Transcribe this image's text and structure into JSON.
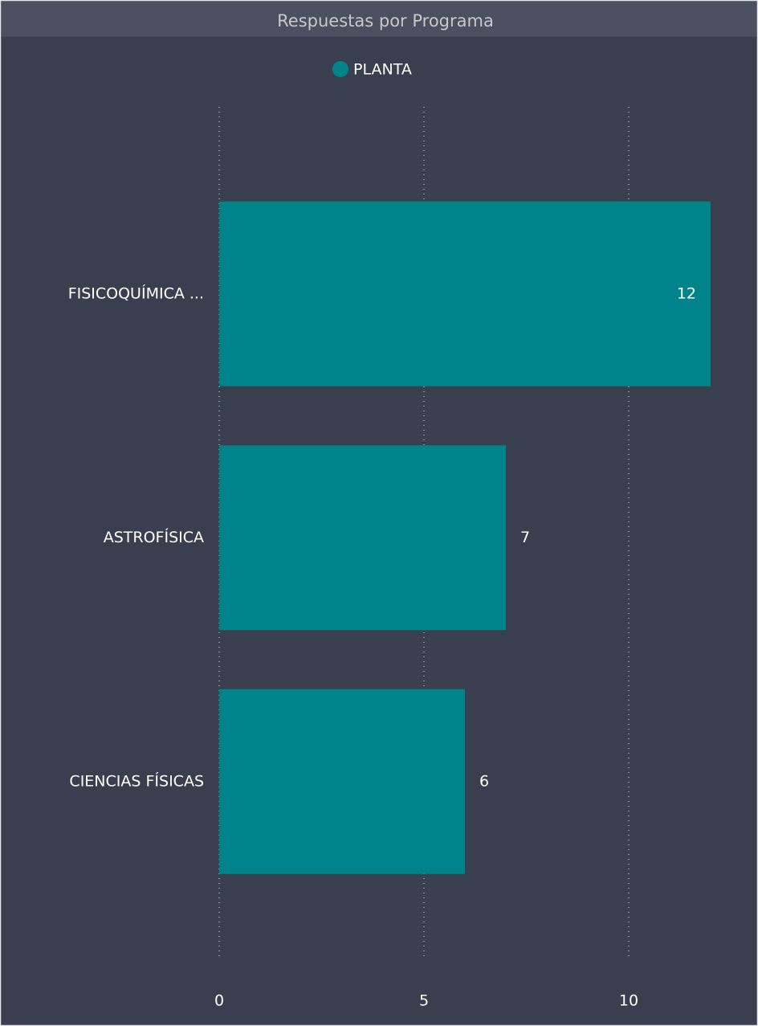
{
  "chart_data": {
    "type": "bar",
    "orientation": "horizontal",
    "title": "Respuestas por Programa",
    "categories": [
      "FISICOQUÍMICA ...",
      "ASTROFÍSICA",
      "CIENCIAS FÍSICAS"
    ],
    "series": [
      {
        "name": "PLANTA",
        "color": "#00838a",
        "values": [
          12,
          7,
          6
        ]
      }
    ],
    "xlim": [
      0,
      12
    ],
    "xticks": [
      0,
      5,
      10
    ],
    "grid": true
  }
}
